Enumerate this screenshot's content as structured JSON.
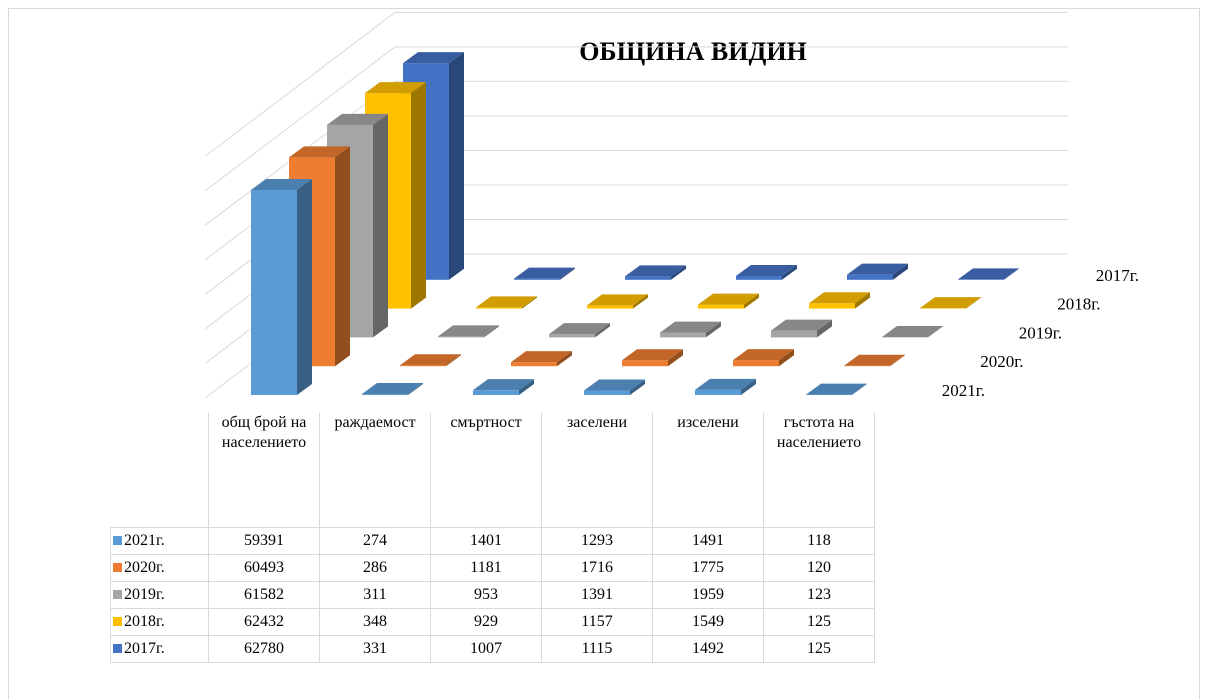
{
  "chart_data": {
    "type": "bar",
    "title": "ОБЩИНА ВИДИН",
    "categories": [
      "общ брой на населението",
      "раждаемост",
      "смъртност",
      "заселени",
      "изселени",
      "гъстота на населението"
    ],
    "series": [
      {
        "name": "2021г.",
        "color": "#5b9bd5",
        "values": [
          59391,
          274,
          1401,
          1293,
          1491,
          118
        ]
      },
      {
        "name": "2020г.",
        "color": "#ed7d31",
        "values": [
          60493,
          286,
          1181,
          1716,
          1775,
          120
        ]
      },
      {
        "name": "2019г.",
        "color": "#a5a5a5",
        "values": [
          61582,
          311,
          953,
          1391,
          1959,
          123
        ]
      },
      {
        "name": "2018г.",
        "color": "#ffc000",
        "values": [
          62432,
          348,
          929,
          1157,
          1549,
          125
        ]
      },
      {
        "name": "2017г.",
        "color": "#4472c4",
        "values": [
          62780,
          331,
          1007,
          1115,
          1492,
          125
        ]
      }
    ],
    "ylim": [
      0,
      70000
    ],
    "yticks": [
      0,
      10000,
      20000,
      30000,
      40000,
      50000,
      60000,
      70000
    ],
    "grid": true
  }
}
